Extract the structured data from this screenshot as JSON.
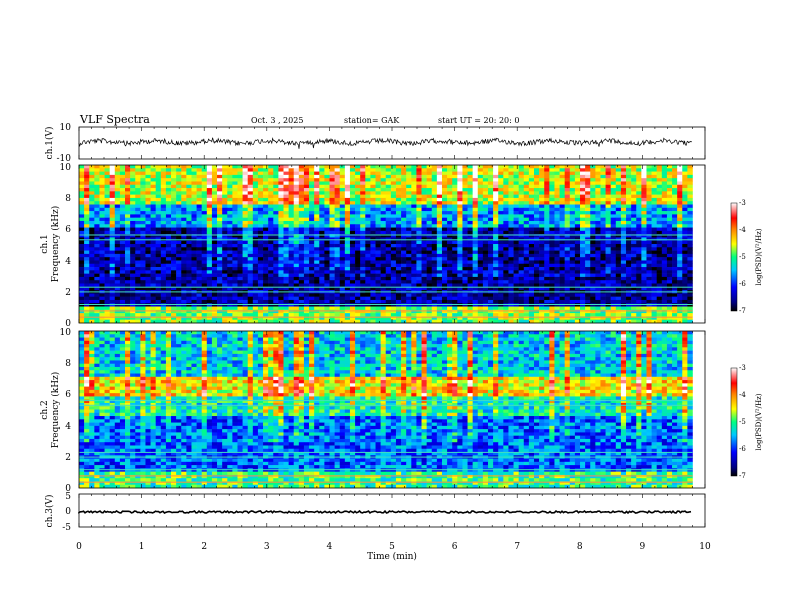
{
  "header": {
    "title": "VLF  Spectra",
    "date": "Oct. 3   , 2025",
    "station": "station= GAK",
    "start_ut": "start  UT  =    20: 20: 0"
  },
  "chart_data": [
    {
      "type": "line",
      "panel": "ch1-waveform",
      "ylabel": "ch.1(V)",
      "yticks": [
        "10",
        "-10"
      ],
      "ylim": [
        -10,
        10
      ],
      "xlim": [
        0,
        10
      ],
      "line_color": "#000000"
    },
    {
      "type": "heatmap",
      "panel": "ch1-spectrogram",
      "ylabel_line1": "ch.1",
      "ylabel_line2": "Frequency  (kHz)",
      "yticks": [
        "0",
        "2",
        "4",
        "6",
        "8",
        "10"
      ],
      "ylim": [
        0,
        10
      ],
      "xlim": [
        0,
        9.8
      ],
      "colorbar": {
        "label": "log(PSD)(V²/Hz)",
        "ticks": [
          "-3",
          "-4",
          "-5",
          "-6",
          "-7"
        ],
        "range": [
          -7,
          -3
        ]
      }
    },
    {
      "type": "heatmap",
      "panel": "ch2-spectrogram",
      "ylabel_line1": "ch.2",
      "ylabel_line2": "Frequency  (kHz)",
      "yticks": [
        "0",
        "2",
        "4",
        "6",
        "8",
        "10"
      ],
      "ylim": [
        0,
        10
      ],
      "xlim": [
        0,
        9.8
      ],
      "colorbar": {
        "label": "log(PSD)(V²/Hz)",
        "ticks": [
          "-3",
          "-4",
          "-5",
          "-6",
          "-7"
        ],
        "range": [
          -7,
          -3
        ]
      }
    },
    {
      "type": "line",
      "panel": "ch3-waveform",
      "ylabel": "ch.3(V)",
      "yticks": [
        "5",
        "0",
        "-5"
      ],
      "ylim": [
        -5,
        5
      ],
      "xlim": [
        0,
        10
      ],
      "line_color": "#000000"
    }
  ],
  "xaxis": {
    "label": "Time  (min)",
    "ticks": [
      "0",
      "1",
      "2",
      "3",
      "4",
      "5",
      "6",
      "7",
      "8",
      "9",
      "10"
    ],
    "range": [
      0,
      10
    ]
  }
}
